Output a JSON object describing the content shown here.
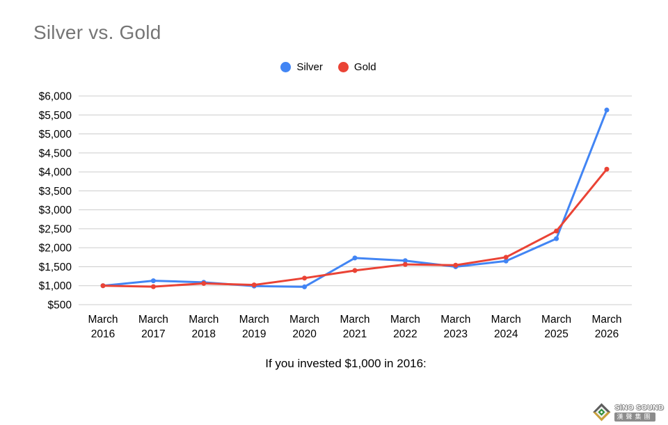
{
  "header": {
    "title": "Silver vs. Gold",
    "title_color": "#757575"
  },
  "legend": {
    "position": "top",
    "items": [
      {
        "label": "Silver",
        "color": "#4285f4"
      },
      {
        "label": "Gold",
        "color": "#ea4335"
      }
    ]
  },
  "chart_data": {
    "type": "line",
    "title": "Silver vs. Gold",
    "categories": [
      "March 2016",
      "March 2017",
      "March 2018",
      "March 2019",
      "March 2020",
      "March 2021",
      "March 2022",
      "March 2023",
      "March 2024",
      "March 2025",
      "March 2026"
    ],
    "series": [
      {
        "name": "Silver",
        "color": "#4285f4",
        "values": [
          1000,
          1130,
          1090,
          990,
          970,
          1730,
          1660,
          1500,
          1650,
          2240,
          5630
        ]
      },
      {
        "name": "Gold",
        "color": "#ea4335",
        "values": [
          1000,
          975,
          1060,
          1020,
          1200,
          1400,
          1560,
          1540,
          1750,
          2440,
          4070
        ]
      }
    ],
    "ylim": [
      500,
      6000
    ],
    "y_tick_step": 500,
    "y_tick_prefix": "$",
    "y_tick_labels": [
      "$500",
      "$1,000",
      "$1,500",
      "$2,000",
      "$2,500",
      "$3,000",
      "$3,500",
      "$4,000",
      "$4,500",
      "$5,000",
      "$5,500",
      "$6,000"
    ],
    "grid": true,
    "grid_color": "#cccccc",
    "axis_color": "#000000",
    "marker_radius": 3.5,
    "line_width": 3
  },
  "footer": {
    "caption": "If you invested $1,000 in 2016:"
  },
  "watermark": {
    "brand": "SiNO SOUND",
    "chinese": "漢聲集團"
  }
}
